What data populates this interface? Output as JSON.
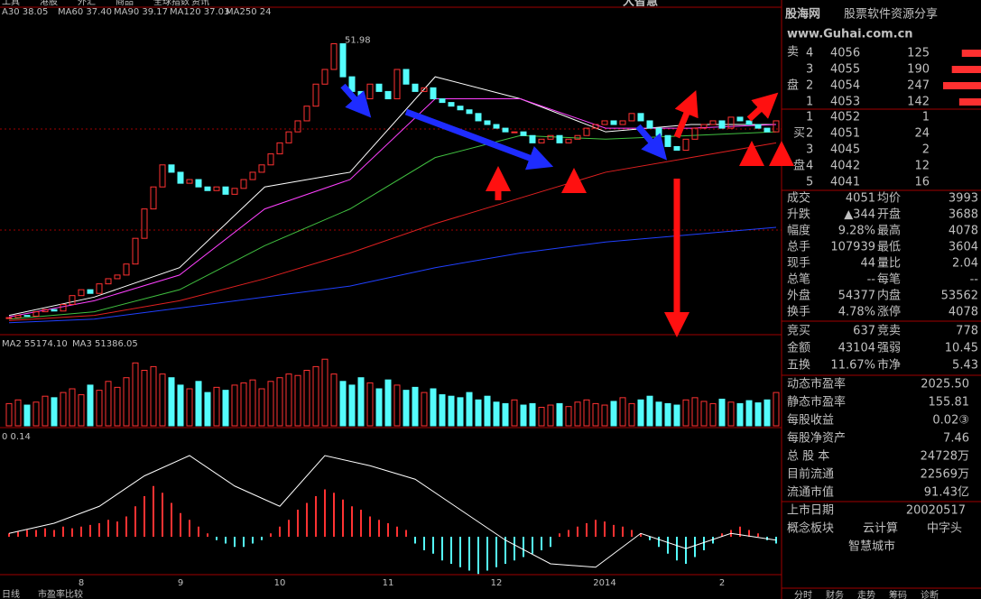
{
  "menu": [
    "工具",
    "港股",
    "外汇",
    "商品",
    "全球指数",
    "资讯"
  ],
  "brand": "大智慧",
  "watermark": {
    "brand": "股海网",
    "slogan": "股票软件资源分享",
    "url": "www.Guhai.com.cn"
  },
  "price_panel": {
    "ma_labels": [
      {
        "text": "A30 38.05",
        "color": "#ffffff"
      },
      {
        "text": "MA60 37.40",
        "color": "#e0e0e0"
      },
      {
        "text": "MA90 39.17",
        "color": "#ff5050"
      },
      {
        "text": "MA120 37.03",
        "color": "#40e040"
      },
      {
        "text": "MA250 24",
        "color": "#4060ff"
      }
    ],
    "peak_label": "51.98",
    "ylim": [
      11,
      54
    ],
    "closes": [
      13.2,
      13.5,
      13.4,
      14.0,
      14.3,
      14.1,
      15.0,
      16.2,
      17.0,
      16.5,
      17.8,
      18.5,
      19.0,
      20.5,
      24,
      28,
      31,
      34,
      33,
      31.5,
      32,
      31,
      30.5,
      31,
      30,
      30.8,
      32,
      33,
      34,
      35.5,
      37,
      38.5,
      40,
      42,
      45,
      47,
      50.5,
      46,
      44,
      43,
      45,
      44,
      43,
      47,
      45,
      44,
      44.5,
      43,
      42.5,
      42,
      41.5,
      41,
      40,
      39.5,
      39,
      38.5,
      38.5,
      38,
      37,
      37.5,
      38,
      37,
      37.5,
      38,
      39,
      39.5,
      40,
      39.5,
      40,
      41,
      40,
      39,
      38,
      36.5,
      36,
      37.5,
      39,
      39.5,
      40,
      39,
      40.5,
      40,
      39.5,
      39,
      38.5,
      40
    ],
    "ma_lines": [
      {
        "color": "#ffffff",
        "values": [
          13.5,
          16,
          20,
          31,
          33,
          46,
          43,
          38.5,
          39.5,
          39.5
        ]
      },
      {
        "color": "#ff40ff",
        "values": [
          13.3,
          15.5,
          19,
          28,
          32,
          43,
          43,
          39,
          39,
          39.5
        ]
      },
      {
        "color": "#40c040",
        "values": [
          13,
          14,
          17,
          23,
          28,
          35,
          38,
          37.5,
          38,
          38.5
        ]
      },
      {
        "color": "#e02020",
        "values": [
          12.8,
          13.5,
          15.5,
          18.5,
          22,
          26,
          29.5,
          33,
          35,
          37
        ]
      },
      {
        "color": "#2040ff",
        "values": [
          12.5,
          13,
          14.5,
          16,
          17.5,
          20,
          22,
          23.5,
          24.5,
          25.5
        ]
      }
    ]
  },
  "volume_panel": {
    "labels": [
      {
        "text": "MA2 55174.10",
        "color": "#ffffff"
      },
      {
        "text": "MA3 51386.05",
        "color": "#ff40ff"
      }
    ],
    "ylim": [
      0,
      100000
    ],
    "values": [
      30000,
      35000,
      28000,
      32000,
      40000,
      38000,
      45000,
      50000,
      42000,
      55000,
      48000,
      60000,
      52000,
      65000,
      85000,
      75000,
      80000,
      70000,
      65000,
      55000,
      50000,
      60000,
      45000,
      52000,
      48000,
      55000,
      58000,
      62000,
      50000,
      60000,
      65000,
      70000,
      68000,
      75000,
      80000,
      90000,
      70000,
      60000,
      55000,
      65000,
      58000,
      50000,
      62000,
      55000,
      48000,
      52000,
      45000,
      50000,
      42000,
      40000,
      38000,
      45000,
      35000,
      40000,
      32000,
      30000,
      35000,
      28000,
      30000,
      25000,
      28000,
      30000,
      26000,
      32000,
      35000,
      30000,
      28000,
      33000,
      38000,
      30000,
      35000,
      40000,
      32000,
      30000,
      28000,
      35000,
      38000,
      33000,
      30000,
      36000,
      32000,
      30000,
      34000,
      31000,
      35000,
      45000
    ]
  },
  "macd_panel": {
    "label": "0 0.14",
    "ylim": [
      -1.2,
      2.8
    ],
    "hist": [
      0.1,
      0.15,
      0.2,
      0.2,
      0.25,
      0.2,
      0.3,
      0.25,
      0.3,
      0.35,
      0.4,
      0.5,
      0.45,
      0.6,
      0.9,
      1.2,
      1.5,
      1.3,
      1.0,
      0.7,
      0.5,
      0.3,
      0.1,
      -0.1,
      -0.2,
      -0.3,
      -0.3,
      -0.2,
      -0.1,
      0.1,
      0.3,
      0.5,
      0.8,
      1.0,
      1.2,
      1.4,
      1.3,
      1.1,
      0.9,
      0.8,
      0.6,
      0.5,
      0.4,
      0.3,
      0.2,
      -0.2,
      -0.4,
      -0.5,
      -0.7,
      -0.8,
      -0.9,
      -1.0,
      -1.1,
      -1.0,
      -0.9,
      -0.8,
      -0.7,
      -0.6,
      -0.5,
      -0.4,
      -0.3,
      0.1,
      0.2,
      0.3,
      0.4,
      0.5,
      0.45,
      0.35,
      0.3,
      0.2,
      0.1,
      -0.1,
      -0.3,
      -0.5,
      -0.7,
      -0.8,
      -0.6,
      -0.4,
      -0.2,
      0.1,
      0.2,
      0.3,
      0.2,
      0.1,
      -0.1,
      -0.2
    ],
    "dif": [
      0.1,
      0.4,
      0.9,
      1.8,
      2.4,
      1.5,
      0.9,
      2.4,
      2.1,
      1.7,
      0.8,
      -0.1,
      -0.8,
      -0.9,
      0.1,
      -0.35,
      0.1,
      -0.1
    ]
  },
  "categories": [
    null,
    null,
    null,
    null,
    null,
    null,
    null,
    null,
    "8",
    null,
    null,
    null,
    null,
    null,
    null,
    null,
    null,
    null,
    null,
    "9",
    null,
    null,
    null,
    null,
    null,
    null,
    null,
    null,
    null,
    null,
    "10",
    null,
    null,
    null,
    null,
    null,
    null,
    null,
    null,
    null,
    null,
    null,
    "11",
    null,
    null,
    null,
    null,
    null,
    null,
    null,
    null,
    null,
    null,
    null,
    "12",
    null,
    null,
    null,
    null,
    null,
    null,
    null,
    null,
    null,
    null,
    null,
    "2014",
    null,
    null,
    null,
    null,
    null,
    null,
    null,
    null,
    null,
    null,
    null,
    null,
    "2",
    null,
    null,
    null,
    null,
    null,
    null
  ],
  "order_book": {
    "sell_title": [
      "卖",
      "盘"
    ],
    "sell": [
      [
        4,
        4056,
        125
      ],
      [
        3,
        4055,
        190
      ],
      [
        2,
        4054,
        247
      ],
      [
        1,
        4053,
        142
      ]
    ],
    "buy_title": [
      "买",
      "盘"
    ],
    "buy": [
      [
        1,
        4052,
        1
      ],
      [
        2,
        4051,
        24
      ],
      [
        3,
        4045,
        2
      ],
      [
        4,
        4042,
        12
      ],
      [
        5,
        4041,
        16
      ]
    ]
  },
  "quote": [
    [
      "成交",
      "4051",
      "均价",
      "3993"
    ],
    [
      "升跌",
      "▲344",
      "开盘",
      "3688"
    ],
    [
      "幅度",
      "9.28%",
      "最高",
      "4078"
    ],
    [
      "总手",
      "107939",
      "最低",
      "3604"
    ],
    [
      "现手",
      "44",
      "量比",
      "2.04"
    ],
    [
      "总笔",
      "--",
      "每笔",
      "--"
    ],
    [
      "外盘",
      "54377",
      "内盘",
      "53562"
    ],
    [
      "换手",
      "4.78%",
      "涨停",
      "4078"
    ]
  ],
  "auction": [
    [
      "竞买",
      "637",
      "竞卖",
      "778"
    ],
    [
      "金额",
      "43104",
      "强弱",
      "10.45"
    ],
    [
      "五换",
      "11.67%",
      "市净",
      "5.43"
    ]
  ],
  "fundamentals": [
    [
      "动态市盈率",
      "2025.50"
    ],
    [
      "静态市盈率",
      "155.81"
    ],
    [
      "每股收益",
      "0.02③"
    ],
    [
      "每股净资产",
      "7.46"
    ],
    [
      "总 股 本",
      "24728万"
    ],
    [
      "目前流通",
      "22569万"
    ],
    [
      "流通市值",
      "91.43亿"
    ]
  ],
  "listing": [
    "上市日期",
    "20020517"
  ],
  "concepts": {
    "label": "概念板块",
    "items": [
      "云计算",
      "中字头",
      "智慧城市"
    ]
  },
  "bottom_left": [
    "日线",
    "市盈率比较"
  ],
  "bottom_tabs": [
    "分时",
    "财务",
    "走势",
    "筹码",
    "诊断"
  ]
}
